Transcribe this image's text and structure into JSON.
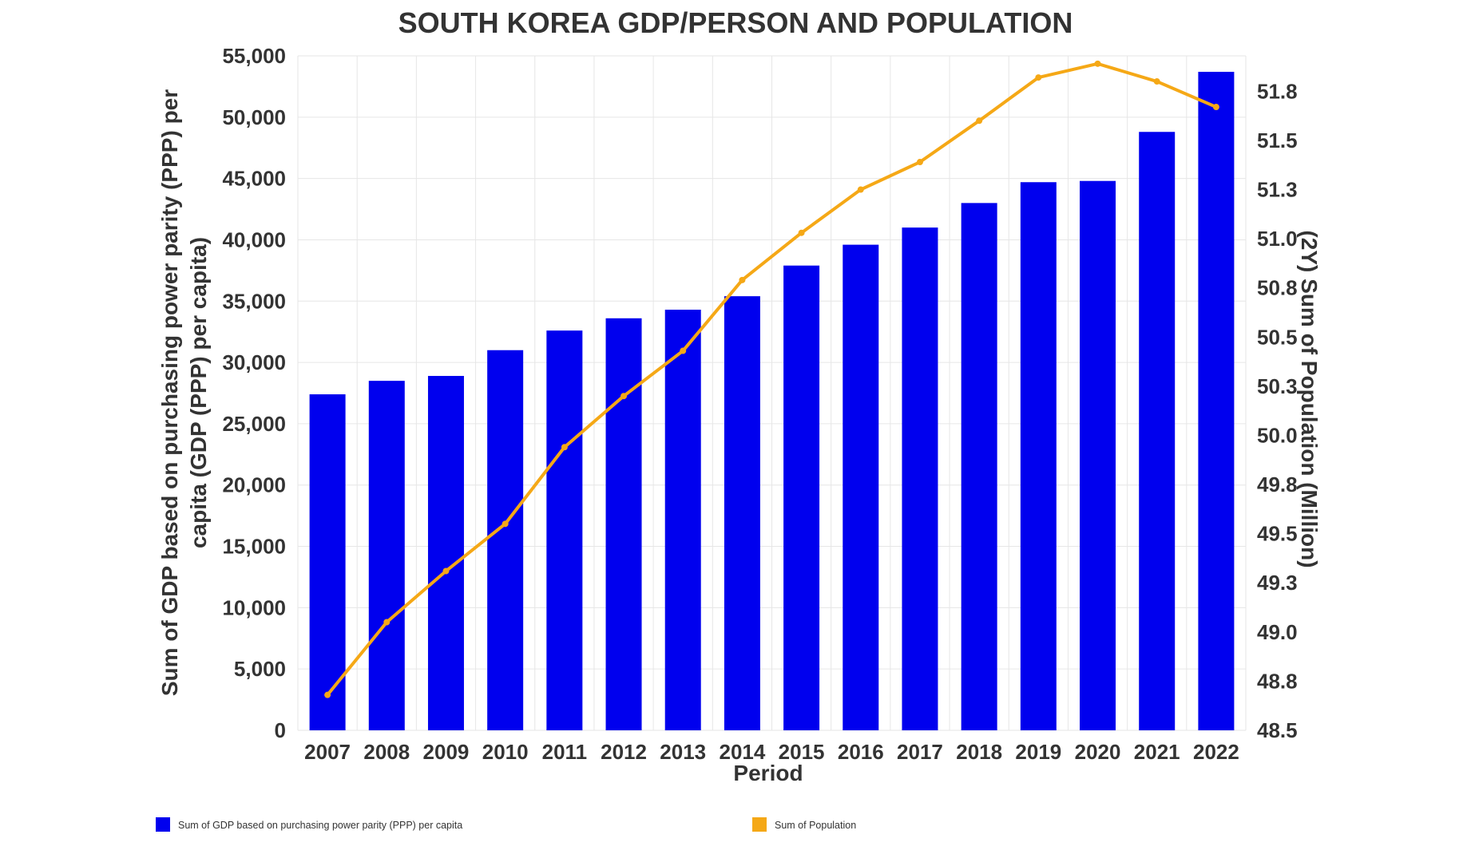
{
  "chart_data": {
    "type": "bar",
    "title": "SOUTH KOREA GDP/PERSON AND POPULATION",
    "xlabel": "Period",
    "ylabel_lines": [
      "Sum of GDP based on purchasing power parity (PPP) per",
      "capita (GDP (PPP) per capita)"
    ],
    "y2label": "(2Y) Sum of Population (Million)",
    "categories": [
      "2007",
      "2008",
      "2009",
      "2010",
      "2011",
      "2012",
      "2013",
      "2014",
      "2015",
      "2016",
      "2017",
      "2018",
      "2019",
      "2020",
      "2021",
      "2022"
    ],
    "ylim": [
      0,
      55000
    ],
    "yticks": [
      0,
      5000,
      10000,
      15000,
      20000,
      25000,
      30000,
      35000,
      40000,
      45000,
      50000,
      55000
    ],
    "ytick_labels": [
      "0",
      "5,000",
      "10,000",
      "15,000",
      "20,000",
      "25,000",
      "30,000",
      "35,000",
      "40,000",
      "45,000",
      "50,000",
      "55,000"
    ],
    "y2lim": [
      48.5,
      51.93
    ],
    "y2ticks": [
      48.5,
      48.75,
      49.0,
      49.25,
      49.5,
      49.75,
      50.0,
      50.25,
      50.5,
      50.75,
      51.0,
      51.25,
      51.5,
      51.75
    ],
    "y2tick_labels": [
      "48.5",
      "48.8",
      "49.0",
      "49.3",
      "49.5",
      "49.8",
      "50.0",
      "50.3",
      "50.5",
      "50.8",
      "51.0",
      "51.3",
      "51.5",
      "51.8"
    ],
    "grid": true,
    "legend_position": "bottom",
    "series": [
      {
        "name": "Sum of GDP based on purchasing power parity (PPP) per capita",
        "type": "bar",
        "axis": "left",
        "color": "#0000ee",
        "values": [
          27400,
          28500,
          28900,
          31000,
          32600,
          33600,
          34300,
          35400,
          37900,
          39600,
          41000,
          43000,
          44700,
          44800,
          48800,
          53700
        ]
      },
      {
        "name": "Sum of Population",
        "type": "line",
        "axis": "right",
        "color": "#f5a816",
        "values": [
          48.68,
          49.05,
          49.31,
          49.55,
          49.94,
          50.2,
          50.43,
          50.79,
          51.03,
          51.25,
          51.39,
          51.6,
          51.82,
          51.89,
          51.8,
          51.67
        ]
      }
    ]
  }
}
